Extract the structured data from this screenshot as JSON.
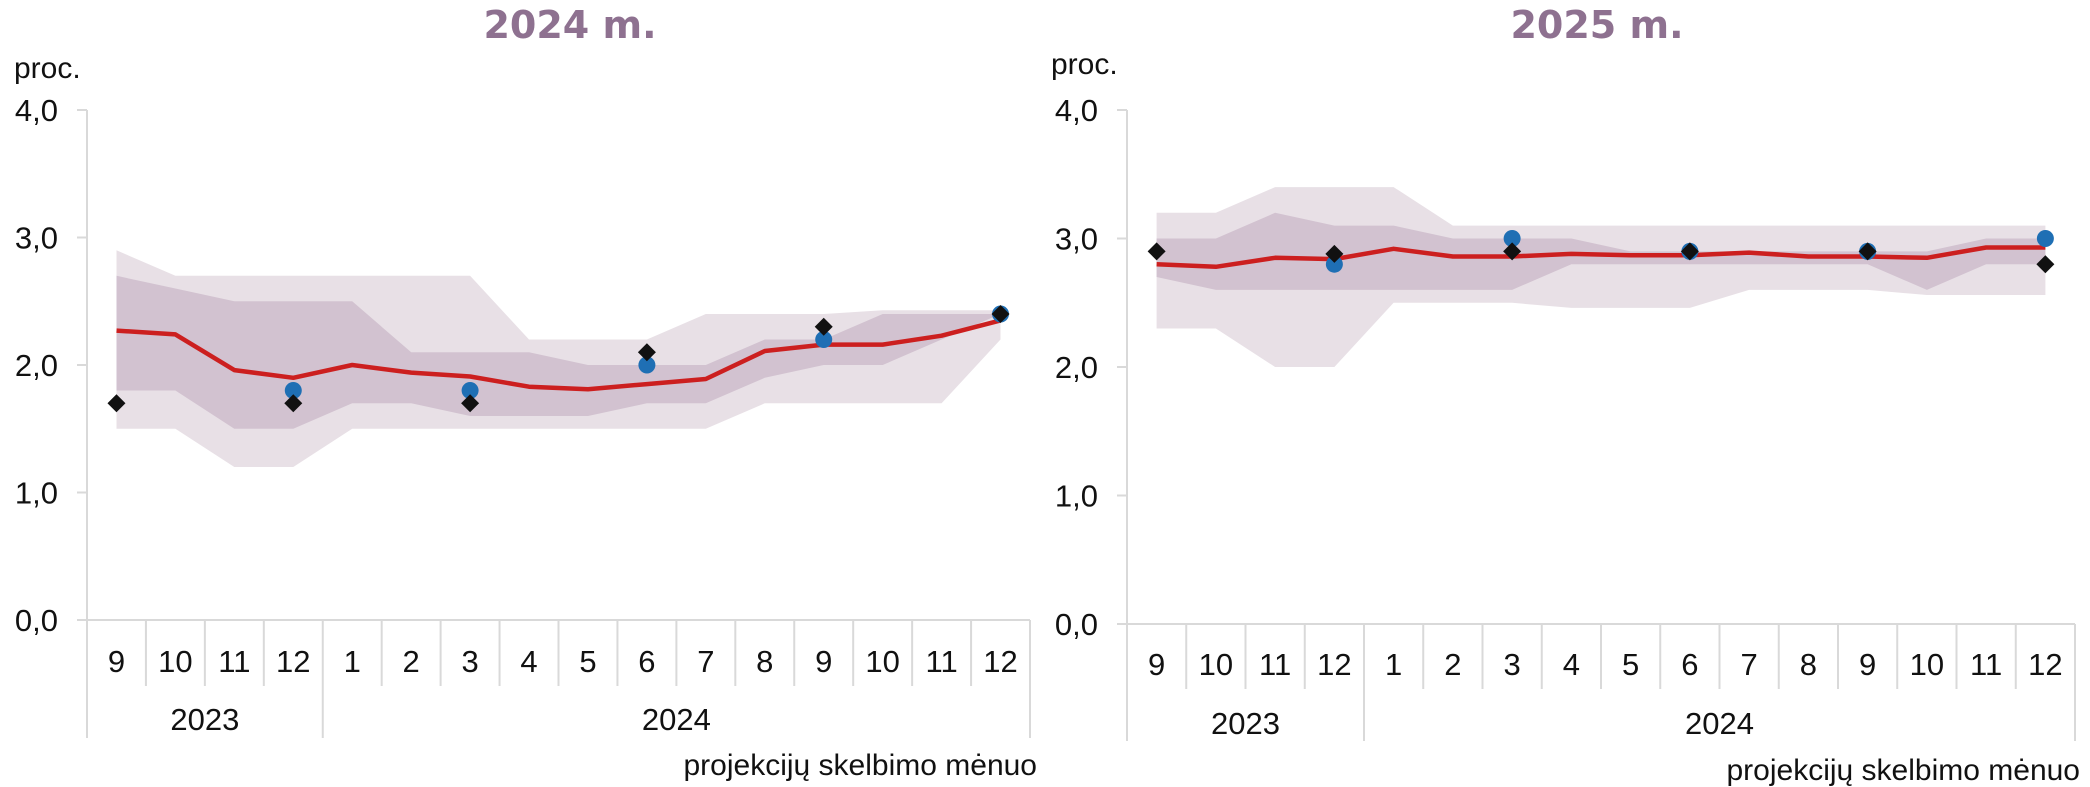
{
  "chart_data": [
    {
      "type": "line",
      "title": "2024 m.",
      "ylabel": "proc.",
      "xlabel": "projekcijų skelbimo mėnuo",
      "ylim": [
        0,
        4
      ],
      "y_ticks": [
        "0,0",
        "1,0",
        "2,0",
        "3,0",
        "4,0"
      ],
      "categories": [
        "9",
        "10",
        "11",
        "12",
        "1",
        "2",
        "3",
        "4",
        "5",
        "6",
        "7",
        "8",
        "9",
        "10",
        "11",
        "12"
      ],
      "year_groups": [
        {
          "label": "2023",
          "count": 4
        },
        {
          "label": "2024",
          "count": 12
        }
      ],
      "band_outer": {
        "upper": [
          2.9,
          2.7,
          2.7,
          2.7,
          2.7,
          2.7,
          2.7,
          2.2,
          2.2,
          2.2,
          2.4,
          2.4,
          2.4,
          2.43,
          2.43,
          2.43
        ],
        "lower": [
          1.5,
          1.5,
          1.2,
          1.2,
          1.5,
          1.5,
          1.5,
          1.5,
          1.5,
          1.5,
          1.5,
          1.7,
          1.7,
          1.7,
          1.7,
          2.2
        ]
      },
      "band_inner": {
        "upper": [
          2.7,
          2.6,
          2.5,
          2.5,
          2.5,
          2.1,
          2.1,
          2.1,
          2.0,
          2.0,
          2.0,
          2.2,
          2.2,
          2.4,
          2.4,
          2.4
        ],
        "lower": [
          1.8,
          1.8,
          1.5,
          1.5,
          1.7,
          1.7,
          1.6,
          1.6,
          1.6,
          1.7,
          1.7,
          1.9,
          2.0,
          2.0,
          2.2,
          2.4
        ]
      },
      "series": [
        {
          "kind": "line",
          "color": "#cc1f1f",
          "values": [
            2.27,
            2.24,
            1.96,
            1.9,
            2.0,
            1.94,
            1.91,
            1.83,
            1.81,
            1.85,
            1.89,
            2.11,
            2.16,
            2.16,
            2.23,
            2.35
          ]
        },
        {
          "kind": "circle",
          "color": "#1f6fb4",
          "values": [
            null,
            null,
            null,
            1.8,
            null,
            null,
            1.8,
            null,
            null,
            2.0,
            null,
            null,
            2.2,
            null,
            null,
            2.4
          ]
        },
        {
          "kind": "diamond",
          "color": "#111111",
          "values": [
            1.7,
            null,
            null,
            1.7,
            null,
            null,
            1.7,
            null,
            null,
            2.1,
            null,
            null,
            2.3,
            null,
            null,
            2.4
          ]
        }
      ]
    },
    {
      "type": "line",
      "title": "2025 m.",
      "ylabel": "proc.",
      "xlabel": "projekcijų skelbimo mėnuo",
      "ylim": [
        0,
        4
      ],
      "y_ticks": [
        "0,0",
        "1,0",
        "2,0",
        "3,0",
        "4,0"
      ],
      "categories": [
        "9",
        "10",
        "11",
        "12",
        "1",
        "2",
        "3",
        "4",
        "5",
        "6",
        "7",
        "8",
        "9",
        "10",
        "11",
        "12"
      ],
      "year_groups": [
        {
          "label": "2023",
          "count": 4
        },
        {
          "label": "2024",
          "count": 12
        }
      ],
      "band_outer": {
        "upper": [
          3.2,
          3.2,
          3.4,
          3.4,
          3.4,
          3.1,
          3.1,
          3.1,
          3.1,
          3.1,
          3.1,
          3.1,
          3.1,
          3.1,
          3.1,
          3.1
        ],
        "lower": [
          2.3,
          2.3,
          2.0,
          2.0,
          2.5,
          2.5,
          2.5,
          2.46,
          2.46,
          2.46,
          2.6,
          2.6,
          2.6,
          2.56,
          2.56,
          2.56
        ]
      },
      "band_inner": {
        "upper": [
          3.0,
          3.0,
          3.2,
          3.1,
          3.1,
          3.0,
          3.0,
          3.0,
          2.9,
          2.9,
          2.9,
          2.9,
          2.9,
          2.9,
          3.0,
          3.0
        ],
        "lower": [
          2.7,
          2.6,
          2.6,
          2.6,
          2.6,
          2.6,
          2.6,
          2.8,
          2.8,
          2.8,
          2.8,
          2.8,
          2.8,
          2.6,
          2.8,
          2.8
        ]
      },
      "series": [
        {
          "kind": "line",
          "color": "#cc1f1f",
          "values": [
            2.8,
            2.78,
            2.85,
            2.84,
            2.92,
            2.86,
            2.86,
            2.88,
            2.87,
            2.87,
            2.89,
            2.86,
            2.86,
            2.85,
            2.93,
            2.93
          ]
        },
        {
          "kind": "circle",
          "color": "#1f6fb4",
          "values": [
            null,
            null,
            null,
            2.8,
            null,
            null,
            3.0,
            null,
            null,
            2.9,
            null,
            null,
            2.9,
            null,
            null,
            3.0
          ]
        },
        {
          "kind": "diamond",
          "color": "#111111",
          "values": [
            2.9,
            null,
            null,
            2.88,
            null,
            null,
            2.9,
            null,
            null,
            2.9,
            null,
            null,
            2.9,
            null,
            null,
            2.8
          ]
        }
      ]
    }
  ],
  "colors": {
    "band_outer": "#e8e0e6",
    "band_inner": "#d2c2d0",
    "line": "#cc1f1f",
    "circle": "#1f6fb4",
    "diamond": "#111111",
    "title": "#8e7190"
  }
}
